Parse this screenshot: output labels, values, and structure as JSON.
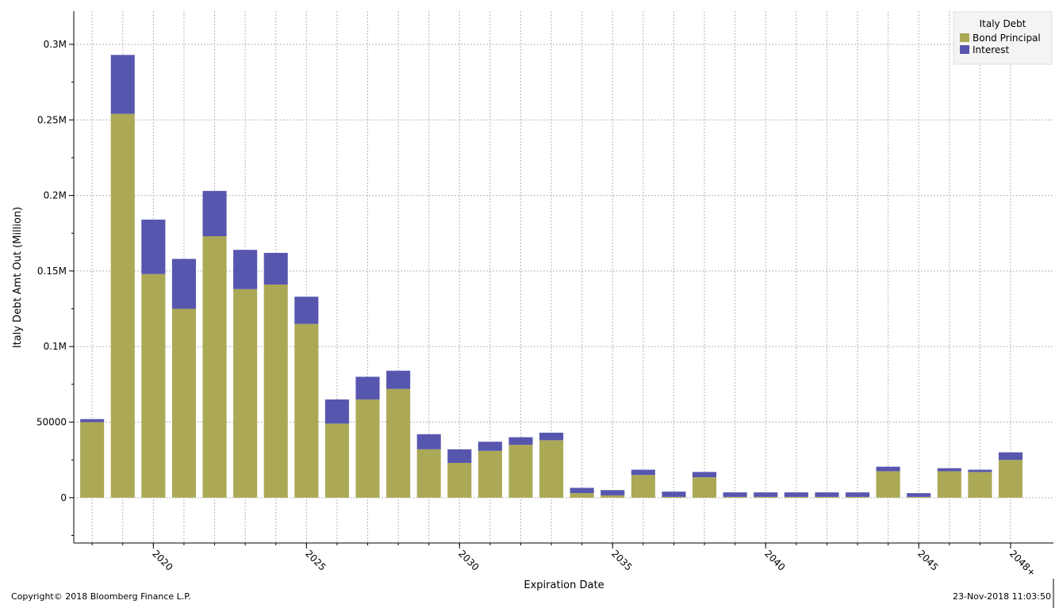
{
  "chart_data": {
    "type": "bar",
    "stacked": true,
    "xlabel": "Expiration Date",
    "ylabel": "Italy Debt Amt Out (Million)",
    "ylim": [
      -30000,
      322000
    ],
    "y_ticks": [
      0,
      50000,
      100000,
      150000,
      200000,
      250000,
      300000
    ],
    "y_tick_labels": [
      "0",
      "50000",
      "0.1M",
      "0.15M",
      "0.2M",
      "0.25M",
      "0.3M"
    ],
    "xlim": [
      2017.4,
      2049.4
    ],
    "x_ticks": [
      2020,
      2025,
      2030,
      2035,
      2040,
      2045,
      2048
    ],
    "x_tick_labels": [
      "2020",
      "2025",
      "2030",
      "2035",
      "2040",
      "2045",
      "2048+"
    ],
    "grid": true,
    "categories": [
      2018,
      2019,
      2020,
      2021,
      2022,
      2023,
      2024,
      2025,
      2026,
      2027,
      2028,
      2029,
      2030,
      2031,
      2032,
      2033,
      2034,
      2035,
      2036,
      2037,
      2038,
      2039,
      2040,
      2041,
      2042,
      2043,
      2044,
      2045,
      2046,
      2047,
      2048
    ],
    "series": [
      {
        "name": "Bond Principal",
        "color": "#aba956",
        "values": [
          50000,
          254000,
          148000,
          125000,
          173000,
          138000,
          141000,
          115000,
          49000,
          65000,
          72000,
          32000,
          23000,
          31000,
          35000,
          38000,
          3000,
          1500,
          15000,
          500,
          13500,
          500,
          500,
          500,
          500,
          500,
          17500,
          500,
          17500,
          17000,
          25000
        ]
      },
      {
        "name": "Interest",
        "color": "#5756af",
        "values": [
          2000,
          39000,
          36000,
          33000,
          30000,
          26000,
          21000,
          18000,
          16000,
          15000,
          12000,
          10000,
          9000,
          6000,
          5000,
          5000,
          3500,
          3500,
          3500,
          3500,
          3500,
          3000,
          3000,
          3000,
          3000,
          3000,
          3000,
          2500,
          2000,
          1500,
          5000
        ]
      }
    ],
    "legend": {
      "title": "Italy Debt",
      "position": "top-right"
    }
  },
  "footer": {
    "copyright": "Copyright© 2018 Bloomberg Finance L.P.",
    "timestamp": "23-Nov-2018 11:03:50"
  }
}
